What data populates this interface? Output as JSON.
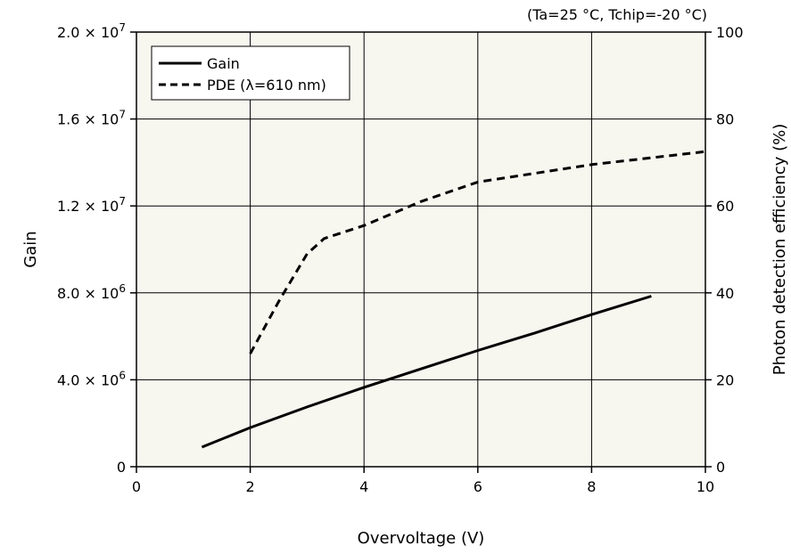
{
  "chart_data": {
    "type": "line",
    "condition_note": "(Ta=25 °C, Tchip=-20 °C)",
    "xlabel": "Overvoltage (V)",
    "ylabel_left": "Gain",
    "ylabel_right": "Photon detection efficiency (%)",
    "xlim": [
      0,
      10
    ],
    "ylim_left": [
      0,
      20000000
    ],
    "ylim_right": [
      0,
      100
    ],
    "x_ticks": [
      "0",
      "2",
      "4",
      "6",
      "8",
      "10"
    ],
    "y_left_ticks": [
      {
        "mantissa": "0",
        "exp": ""
      },
      {
        "mantissa": "4.0 × 10",
        "exp": "6"
      },
      {
        "mantissa": "8.0 × 10",
        "exp": "6"
      },
      {
        "mantissa": "1.2 × 10",
        "exp": "7"
      },
      {
        "mantissa": "1.6 × 10",
        "exp": "7"
      },
      {
        "mantissa": "2.0 × 10",
        "exp": "7"
      }
    ],
    "y_right_ticks": [
      "0",
      "20",
      "40",
      "60",
      "80",
      "100"
    ],
    "grid": true,
    "legend_position": "top-left",
    "plot_background": "#f7f6ef",
    "series": [
      {
        "name": "Gain",
        "axis": "left",
        "style": "solid",
        "x": [
          1.15,
          2,
          3,
          4,
          5,
          6,
          7,
          8,
          9.05
        ],
        "y": [
          900000,
          1800000,
          2750000,
          3650000,
          4500000,
          5350000,
          6150000,
          7000000,
          7850000
        ]
      },
      {
        "name": "PDE (λ=610 nm)",
        "axis": "right",
        "style": "dashed",
        "x": [
          2,
          2.5,
          3,
          3.3,
          4,
          5,
          6,
          7,
          8,
          9,
          10
        ],
        "y": [
          26,
          38,
          49,
          52.5,
          55.5,
          61,
          65.5,
          67.5,
          69.5,
          71,
          72.5
        ]
      }
    ]
  }
}
